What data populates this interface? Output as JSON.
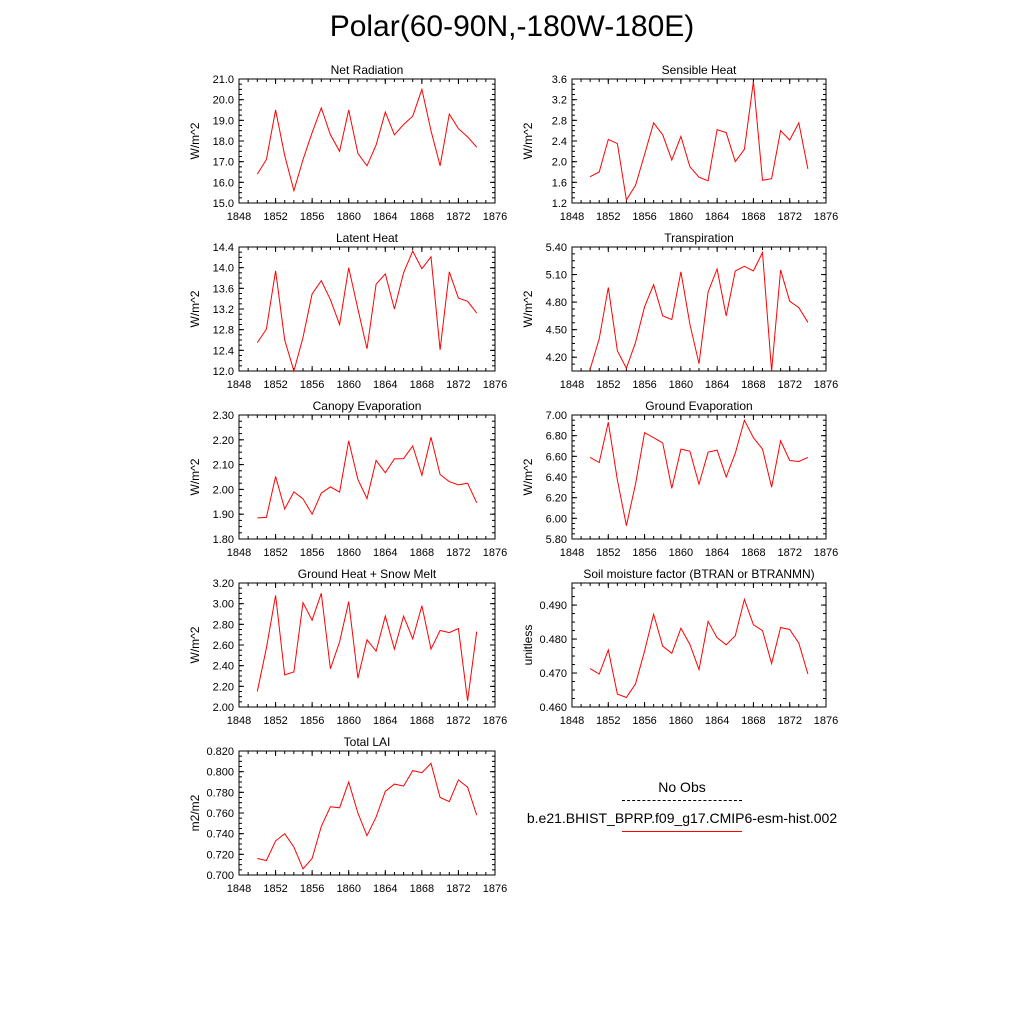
{
  "title": "Polar(60-90N,-180W-180E)",
  "colors": {
    "model": "#ff0000",
    "obs": "#000000"
  },
  "legend": {
    "obs_label": "No Obs",
    "model_label": "b.e21.BHIST_BPRP.f09_g17.CMIP6-esm-hist.002"
  },
  "chart_data": [
    {
      "type": "line",
      "title": "Net Radiation",
      "ylabel": "W/m^2",
      "xlim": [
        1848,
        1876
      ],
      "xticks": [
        1848,
        1852,
        1856,
        1860,
        1864,
        1868,
        1872,
        1876
      ],
      "ylim": [
        15.0,
        21.0
      ],
      "yticks": [
        "15.0",
        "16.0",
        "17.0",
        "18.0",
        "19.0",
        "20.0",
        "21.0"
      ],
      "x": [
        1850,
        1851,
        1852,
        1853,
        1854,
        1855,
        1856,
        1857,
        1858,
        1859,
        1860,
        1861,
        1862,
        1863,
        1864,
        1865,
        1866,
        1867,
        1868,
        1869,
        1870,
        1871,
        1872,
        1873,
        1874
      ],
      "series": [
        {
          "values": [
            16.4,
            17.1,
            19.5,
            17.3,
            15.6,
            17.1,
            18.4,
            19.6,
            18.3,
            17.5,
            19.5,
            17.4,
            16.8,
            17.8,
            19.4,
            18.3,
            18.8,
            19.2,
            20.5,
            18.5,
            16.8,
            19.3,
            18.6,
            18.2,
            17.7
          ]
        }
      ]
    },
    {
      "type": "line",
      "title": "Sensible Heat",
      "ylabel": "W/m^2",
      "xlim": [
        1848,
        1876
      ],
      "xticks": [
        1848,
        1852,
        1856,
        1860,
        1864,
        1868,
        1872,
        1876
      ],
      "ylim": [
        1.2,
        3.6
      ],
      "yticks": [
        "1.2",
        "1.6",
        "2.0",
        "2.4",
        "2.8",
        "3.2",
        "3.6"
      ],
      "x": [
        1850,
        1851,
        1852,
        1853,
        1854,
        1855,
        1856,
        1857,
        1858,
        1859,
        1860,
        1861,
        1862,
        1863,
        1864,
        1865,
        1866,
        1867,
        1868,
        1869,
        1870,
        1871,
        1872,
        1873,
        1874
      ],
      "series": [
        {
          "values": [
            1.71,
            1.8,
            2.43,
            2.35,
            1.26,
            1.54,
            2.14,
            2.75,
            2.52,
            2.03,
            2.49,
            1.9,
            1.7,
            1.63,
            2.62,
            2.56,
            2.0,
            2.24,
            3.55,
            1.64,
            1.67,
            2.6,
            2.42,
            2.75,
            1.86
          ]
        }
      ]
    },
    {
      "type": "line",
      "title": "Latent Heat",
      "ylabel": "W/m^2",
      "xlim": [
        1848,
        1876
      ],
      "xticks": [
        1848,
        1852,
        1856,
        1860,
        1864,
        1868,
        1872,
        1876
      ],
      "ylim": [
        12.0,
        14.4
      ],
      "yticks": [
        "12.0",
        "12.4",
        "12.8",
        "13.2",
        "13.6",
        "14.0",
        "14.4"
      ],
      "x": [
        1850,
        1851,
        1852,
        1853,
        1854,
        1855,
        1856,
        1857,
        1858,
        1859,
        1860,
        1861,
        1862,
        1863,
        1864,
        1865,
        1866,
        1867,
        1868,
        1869,
        1870,
        1871,
        1872,
        1873,
        1874
      ],
      "series": [
        {
          "values": [
            12.55,
            12.81,
            13.94,
            12.6,
            12.0,
            12.65,
            13.49,
            13.75,
            13.38,
            12.9,
            14.0,
            13.2,
            12.43,
            13.68,
            13.88,
            13.2,
            13.9,
            14.32,
            13.98,
            14.21,
            12.41,
            13.92,
            13.41,
            13.35,
            13.12
          ]
        }
      ]
    },
    {
      "type": "line",
      "title": "Transpiration",
      "ylabel": "W/m^2",
      "xlim": [
        1848,
        1876
      ],
      "xticks": [
        1848,
        1852,
        1856,
        1860,
        1864,
        1868,
        1872,
        1876
      ],
      "ylim": [
        4.05,
        5.4
      ],
      "yticks": [
        "4.20",
        "4.50",
        "4.80",
        "5.10",
        "5.40"
      ],
      "x": [
        1850,
        1851,
        1852,
        1853,
        1854,
        1855,
        1856,
        1857,
        1858,
        1859,
        1860,
        1861,
        1862,
        1863,
        1864,
        1865,
        1866,
        1867,
        1868,
        1869,
        1870,
        1871,
        1872,
        1873,
        1874
      ],
      "series": [
        {
          "values": [
            4.07,
            4.4,
            4.96,
            4.27,
            4.08,
            4.36,
            4.75,
            4.99,
            4.65,
            4.61,
            5.13,
            4.56,
            4.13,
            4.91,
            5.16,
            4.65,
            5.14,
            5.19,
            5.14,
            5.34,
            4.05,
            5.15,
            4.81,
            4.74,
            4.58
          ]
        }
      ]
    },
    {
      "type": "line",
      "title": "Canopy Evaporation",
      "ylabel": "W/m^2",
      "xlim": [
        1848,
        1876
      ],
      "xticks": [
        1848,
        1852,
        1856,
        1860,
        1864,
        1868,
        1872,
        1876
      ],
      "ylim": [
        1.8,
        2.3
      ],
      "yticks": [
        "1.80",
        "1.90",
        "2.00",
        "2.10",
        "2.20",
        "2.30"
      ],
      "x": [
        1850,
        1851,
        1852,
        1853,
        1854,
        1855,
        1856,
        1857,
        1858,
        1859,
        1860,
        1861,
        1862,
        1863,
        1864,
        1865,
        1866,
        1867,
        1868,
        1869,
        1870,
        1871,
        1872,
        1873,
        1874
      ],
      "series": [
        {
          "values": [
            1.885,
            1.887,
            2.052,
            1.921,
            1.99,
            1.962,
            1.9,
            1.985,
            2.01,
            1.989,
            2.196,
            2.04,
            1.963,
            2.117,
            2.067,
            2.123,
            2.124,
            2.175,
            2.057,
            2.21,
            2.06,
            2.031,
            2.018,
            2.025,
            1.946
          ]
        }
      ]
    },
    {
      "type": "line",
      "title": "Ground Evaporation",
      "ylabel": "W/m^2",
      "xlim": [
        1848,
        1876
      ],
      "xticks": [
        1848,
        1852,
        1856,
        1860,
        1864,
        1868,
        1872,
        1876
      ],
      "ylim": [
        5.8,
        7.0
      ],
      "yticks": [
        "5.80",
        "6.00",
        "6.20",
        "6.40",
        "6.60",
        "6.80",
        "7.00"
      ],
      "x": [
        1850,
        1851,
        1852,
        1853,
        1854,
        1855,
        1856,
        1857,
        1858,
        1859,
        1860,
        1861,
        1862,
        1863,
        1864,
        1865,
        1866,
        1867,
        1868,
        1869,
        1870,
        1871,
        1872,
        1873,
        1874
      ],
      "series": [
        {
          "values": [
            6.59,
            6.54,
            6.93,
            6.37,
            5.93,
            6.33,
            6.83,
            6.78,
            6.73,
            6.29,
            6.67,
            6.65,
            6.33,
            6.64,
            6.66,
            6.4,
            6.63,
            6.95,
            6.78,
            6.67,
            6.3,
            6.75,
            6.56,
            6.55,
            6.59
          ]
        }
      ]
    },
    {
      "type": "line",
      "title": "Ground Heat + Snow Melt",
      "ylabel": "W/m^2",
      "xlim": [
        1848,
        1876
      ],
      "xticks": [
        1848,
        1852,
        1856,
        1860,
        1864,
        1868,
        1872,
        1876
      ],
      "ylim": [
        2.0,
        3.2
      ],
      "yticks": [
        "2.00",
        "2.20",
        "2.40",
        "2.60",
        "2.80",
        "3.00",
        "3.20"
      ],
      "x": [
        1850,
        1851,
        1852,
        1853,
        1854,
        1855,
        1856,
        1857,
        1858,
        1859,
        1860,
        1861,
        1862,
        1863,
        1864,
        1865,
        1866,
        1867,
        1868,
        1869,
        1870,
        1871,
        1872,
        1873,
        1874
      ],
      "series": [
        {
          "values": [
            2.15,
            2.57,
            3.08,
            2.31,
            2.34,
            3.01,
            2.84,
            3.1,
            2.37,
            2.63,
            3.02,
            2.28,
            2.65,
            2.54,
            2.88,
            2.56,
            2.88,
            2.66,
            2.98,
            2.56,
            2.74,
            2.72,
            2.76,
            2.06,
            2.73
          ]
        }
      ]
    },
    {
      "type": "line",
      "title": "Soil moisture factor (BTRAN or BTRANMN)",
      "ylabel": "unitless",
      "xlim": [
        1848,
        1876
      ],
      "xticks": [
        1848,
        1852,
        1856,
        1860,
        1864,
        1868,
        1872,
        1876
      ],
      "ylim": [
        0.46,
        0.4965
      ],
      "yticks": [
        "0.460",
        "0.470",
        "0.480",
        "0.490"
      ],
      "x": [
        1850,
        1851,
        1852,
        1853,
        1854,
        1855,
        1856,
        1857,
        1858,
        1859,
        1860,
        1861,
        1862,
        1863,
        1864,
        1865,
        1866,
        1867,
        1868,
        1869,
        1870,
        1871,
        1872,
        1873,
        1874
      ],
      "series": [
        {
          "values": [
            0.4713,
            0.4697,
            0.4768,
            0.4638,
            0.4628,
            0.4668,
            0.4765,
            0.4873,
            0.4779,
            0.4758,
            0.4832,
            0.4784,
            0.471,
            0.4852,
            0.4804,
            0.4783,
            0.481,
            0.4917,
            0.4842,
            0.4825,
            0.4728,
            0.4834,
            0.4828,
            0.4788,
            0.4697
          ]
        }
      ]
    },
    {
      "type": "line",
      "title": "Total LAI",
      "ylabel": "m2/m2",
      "xlim": [
        1848,
        1876
      ],
      "xticks": [
        1848,
        1852,
        1856,
        1860,
        1864,
        1868,
        1872,
        1876
      ],
      "ylim": [
        0.7,
        0.82
      ],
      "yticks": [
        "0.700",
        "0.720",
        "0.740",
        "0.760",
        "0.780",
        "0.800",
        "0.820"
      ],
      "x": [
        1850,
        1851,
        1852,
        1853,
        1854,
        1855,
        1856,
        1857,
        1858,
        1859,
        1860,
        1861,
        1862,
        1863,
        1864,
        1865,
        1866,
        1867,
        1868,
        1869,
        1870,
        1871,
        1872,
        1873,
        1874
      ],
      "series": [
        {
          "values": [
            0.716,
            0.714,
            0.733,
            0.74,
            0.727,
            0.706,
            0.716,
            0.747,
            0.766,
            0.765,
            0.79,
            0.76,
            0.738,
            0.756,
            0.781,
            0.788,
            0.786,
            0.801,
            0.799,
            0.808,
            0.775,
            0.771,
            0.792,
            0.785,
            0.758
          ]
        }
      ]
    }
  ]
}
